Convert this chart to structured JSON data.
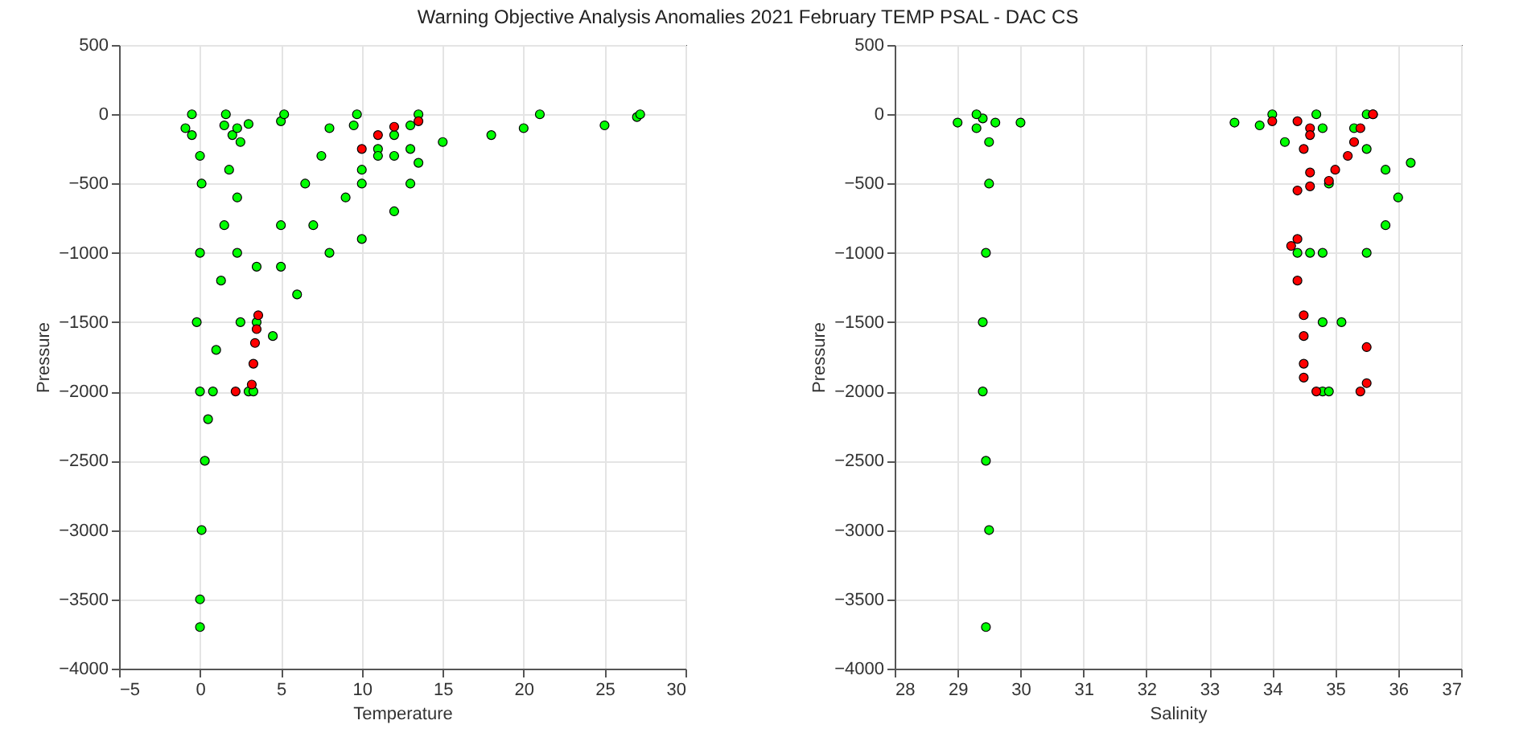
{
  "chart_data": [
    {
      "type": "scatter",
      "title": "Warning Objective Analysis Anomalies 2021 February TEMP PSAL - DAC CS",
      "xlabel": "Temperature",
      "ylabel": "Pressure",
      "xlim": [
        -5,
        30
      ],
      "ylim": [
        -4000,
        500
      ],
      "xticks": [
        -5,
        0,
        5,
        10,
        15,
        20,
        25,
        30
      ],
      "yticks": [
        -4000,
        -3500,
        -3000,
        -2500,
        -2000,
        -1500,
        -1000,
        -500,
        0,
        500
      ],
      "grid": true,
      "legend": false,
      "marker": "circle",
      "series": [
        {
          "color": "#00ff00",
          "x": [
            0,
            0,
            0.1,
            0.3,
            0.5,
            0.8,
            1.0,
            1.3,
            1.5,
            1.8,
            2,
            1.5,
            1.6
          ],
          "values": [
            -3700,
            -3500,
            -3000,
            -2500,
            -2200,
            -2000,
            -1700,
            -1200,
            -800,
            -400,
            -150,
            -80,
            0
          ]
        },
        {
          "color": "#00ff00",
          "x": [
            0,
            -0.2,
            0,
            0.1,
            0,
            -0.5,
            -0.9,
            -0.5
          ],
          "values": [
            -2000,
            -1500,
            -1000,
            -500,
            -300,
            -150,
            -100,
            0
          ]
        },
        {
          "color": "#00ff00",
          "x": [
            2.3,
            2.3,
            2.5,
            2.3,
            3,
            5,
            5.2
          ],
          "values": [
            -1000,
            -600,
            -200,
            -100,
            -70,
            -50,
            0
          ]
        },
        {
          "color": "#00ff00",
          "x": [
            2.5,
            3.5,
            5,
            6.5,
            7.5,
            8,
            9.5,
            9.7
          ],
          "values": [
            -1500,
            -1100,
            -800,
            -500,
            -300,
            -100,
            -80,
            0
          ]
        },
        {
          "color": "#00ff00",
          "x": [
            3,
            3.5,
            5,
            7,
            9,
            10,
            11,
            12,
            13,
            13.5
          ],
          "values": [
            -2000,
            -1500,
            -1100,
            -800,
            -600,
            -400,
            -250,
            -150,
            -80,
            0
          ]
        },
        {
          "color": "#00ff00",
          "x": [
            3.3,
            4.5,
            6,
            8,
            10,
            12,
            13,
            13.5,
            11,
            13,
            15,
            25,
            27,
            27.2
          ],
          "values": [
            -2000,
            -1600,
            -1300,
            -1000,
            -900,
            -700,
            -500,
            -350,
            -300,
            -250,
            -200,
            -80,
            -20,
            0
          ]
        },
        {
          "color": "#00ff00",
          "x": [
            10,
            12,
            18,
            20,
            21
          ],
          "values": [
            -500,
            -300,
            -150,
            -100,
            0
          ]
        },
        {
          "color": "#ff0000",
          "x": [
            2.2,
            3.2,
            3.3,
            3.4,
            3.5,
            3.6,
            10,
            11,
            12,
            13.5
          ],
          "values": [
            -2000,
            -1950,
            -1800,
            -1650,
            -1550,
            -1450,
            -250,
            -150,
            -90,
            -50
          ]
        }
      ]
    },
    {
      "type": "scatter",
      "xlabel": "Salinity",
      "ylabel": "Pressure",
      "xlim": [
        28,
        37
      ],
      "ylim": [
        -4000,
        500
      ],
      "xticks": [
        28,
        29,
        30,
        31,
        32,
        33,
        34,
        35,
        36,
        37
      ],
      "yticks": [
        -4000,
        -3500,
        -3000,
        -2500,
        -2000,
        -1500,
        -1000,
        -500,
        0,
        500
      ],
      "grid": true,
      "legend": false,
      "marker": "circle",
      "series": [
        {
          "color": "#00ff00",
          "x": [
            29.45,
            29.5,
            29.45,
            29.4,
            29.4,
            29.45,
            29.5,
            29.5,
            29.3,
            29,
            29.4,
            29.3,
            29.6,
            30
          ],
          "values": [
            -3700,
            -3000,
            -2500,
            -2000,
            -1500,
            -1000,
            -500,
            -200,
            -100,
            -60,
            -30,
            0,
            -60,
            -60
          ]
        },
        {
          "color": "#00ff00",
          "x": [
            34.4,
            34.2,
            33.8,
            33.4,
            34
          ],
          "values": [
            -1000,
            -200,
            -80,
            -60,
            0
          ]
        },
        {
          "color": "#00ff00",
          "x": [
            34.8,
            34.8,
            34.8,
            34.8,
            34.7
          ],
          "values": [
            -2000,
            -1500,
            -1000,
            -100,
            0
          ]
        },
        {
          "color": "#00ff00",
          "x": [
            34.9,
            35.1,
            35.5,
            35.8,
            36,
            35.8,
            36.2,
            35.5,
            35.3,
            35.5
          ],
          "values": [
            -2000,
            -1500,
            -1000,
            -800,
            -600,
            -400,
            -350,
            -250,
            -100,
            0
          ]
        },
        {
          "color": "#00ff00",
          "x": [
            34.6,
            34.9,
            35.6
          ],
          "values": [
            -1000,
            -500,
            0
          ]
        },
        {
          "color": "#ff0000",
          "x": [
            34.0,
            34.4,
            34.6,
            34.6,
            34.5,
            34.6,
            34.6,
            34.4,
            34.9,
            35.0,
            35.2,
            35.3,
            35.4,
            35.6,
            34.3,
            34.4,
            34.4,
            34.5,
            34.5,
            34.5,
            34.5,
            34.7,
            35.5,
            35.5,
            35.4
          ],
          "values": [
            -50,
            -50,
            -100,
            -150,
            -250,
            -420,
            -520,
            -550,
            -480,
            -400,
            -300,
            -200,
            -100,
            0,
            -950,
            -900,
            -1200,
            -1450,
            -1600,
            -1800,
            -1900,
            -2000,
            -1680,
            -1940,
            -2000
          ]
        }
      ]
    }
  ]
}
